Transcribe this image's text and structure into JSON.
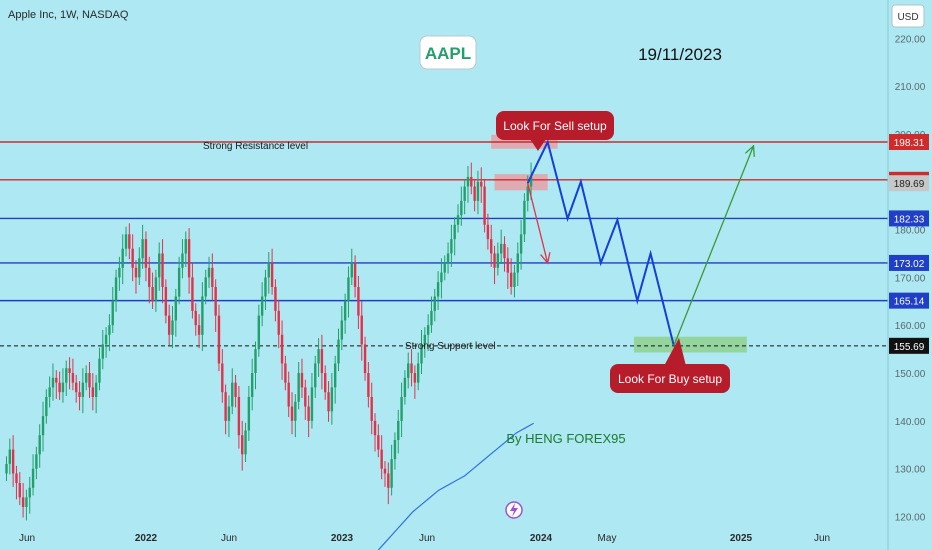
{
  "header": {
    "symbol_title": "Apple Inc, 1W, NASDAQ",
    "currency": "USD"
  },
  "badges": {
    "ticker": "AAPL",
    "date": "19/11/2023"
  },
  "watermark_text": "By HENG FOREX95",
  "colors": {
    "background": "#aee8f2",
    "bull": "#22a06b",
    "bear": "#e0334a",
    "resistance_line": "#d12a2a",
    "support_line": "#1f3fc7",
    "projection": "#1440d8",
    "buy_arrow": "#3a9a3a",
    "callout": "#b71c2b",
    "ma_line": "#2f73e6"
  },
  "chart_data": {
    "type": "candlestick",
    "title": "Apple Inc, 1W, NASDAQ",
    "ylim": [
      113,
      228
    ],
    "y_ticks": [
      120,
      130,
      140,
      150,
      160,
      170,
      180,
      190,
      200,
      210,
      220
    ],
    "x_ticks": [
      "Jun",
      "2022",
      "Jun",
      "2023",
      "Jun",
      "2024",
      "May",
      "2025",
      "Jun"
    ],
    "grid": false,
    "price_levels": [
      {
        "value": 198.31,
        "label": "198.31",
        "color": "#d12a2a",
        "style": "solid"
      },
      {
        "value": 190.4,
        "label": "190.40",
        "color": "#d12a2a",
        "style": "solid"
      },
      {
        "value": 189.69,
        "label": "189.69",
        "color": "#bdbdbd",
        "style": "none"
      },
      {
        "value": 182.33,
        "label": "182.33",
        "color": "#1f3fc7",
        "style": "solid"
      },
      {
        "value": 173.02,
        "label": "173.02",
        "color": "#1f3fc7",
        "style": "solid"
      },
      {
        "value": 165.14,
        "label": "165.14",
        "color": "#1f3fc7",
        "style": "solid"
      },
      {
        "value": 155.69,
        "label": "155.69",
        "color": "#111111",
        "style": "dashed"
      }
    ],
    "annotations": {
      "resistance": "Strong Resistance level",
      "support": "Strong Support level",
      "sell_callout": "Look For Sell setup",
      "buy_callout": "Look For Buy setup"
    },
    "candles_close": [
      131,
      134,
      129,
      127,
      124,
      122,
      124,
      126,
      130,
      133,
      137,
      141,
      145,
      147,
      149,
      148,
      146,
      148,
      151,
      150,
      148,
      146,
      145,
      148,
      150,
      147,
      145,
      148,
      153,
      156,
      158,
      160,
      165,
      170,
      172,
      176,
      179,
      176,
      172,
      170,
      174,
      178,
      172,
      168,
      165,
      170,
      175,
      168,
      162,
      158,
      161,
      166,
      172,
      175,
      178,
      170,
      163,
      160,
      158,
      166,
      170,
      172,
      168,
      162,
      152,
      146,
      140,
      143,
      148,
      145,
      137,
      133,
      138,
      145,
      150,
      155,
      162,
      166,
      170,
      173,
      168,
      163,
      158,
      152,
      148,
      143,
      140,
      144,
      150,
      147,
      143,
      140,
      147,
      152,
      155,
      150,
      146,
      142,
      147,
      152,
      157,
      161,
      165,
      170,
      173,
      168,
      162,
      156,
      150,
      145,
      140,
      137,
      134,
      130,
      129,
      126,
      132,
      136,
      140,
      145,
      149,
      152,
      150,
      148,
      152,
      156,
      158,
      160,
      163,
      166,
      169,
      171,
      173,
      175,
      178,
      181,
      183,
      186,
      189,
      191,
      189,
      186,
      190,
      189,
      181,
      178,
      175,
      172,
      175,
      177,
      174,
      171,
      168,
      171,
      175,
      179,
      186,
      189,
      191
    ],
    "moving_average": {
      "first_week": 112,
      "values": [
        113,
        115,
        117,
        119,
        121,
        122.5,
        124,
        125.5,
        126.5,
        127.5,
        128.5,
        130,
        131.5,
        133,
        134.5,
        136,
        137.5,
        138.5,
        139.5
      ]
    },
    "projection_path": [
      {
        "week": 157,
        "price": 189.7
      },
      {
        "week": 163,
        "price": 198.3
      },
      {
        "week": 169,
        "price": 182.3
      },
      {
        "week": 173,
        "price": 190
      },
      {
        "week": 179,
        "price": 173
      },
      {
        "week": 184,
        "price": 182
      },
      {
        "week": 190,
        "price": 165.1
      },
      {
        "week": 194,
        "price": 175
      },
      {
        "week": 201,
        "price": 155.7
      }
    ],
    "sell_arrow": {
      "from": {
        "week": 157,
        "price": 189.7
      },
      "to": {
        "week": 163,
        "price": 173
      }
    },
    "buy_arrow": {
      "from": {
        "week": 201,
        "price": 155.7
      },
      "to": {
        "week": 225,
        "price": 197.5
      }
    },
    "zones": [
      {
        "from_week": 146,
        "to_week": 166,
        "low": 196.9,
        "high": 199.8,
        "color": "#e6a0a8"
      },
      {
        "from_week": 147,
        "to_week": 163,
        "low": 188.2,
        "high": 191.6,
        "color": "#e6a0a8"
      },
      {
        "from_week": 189,
        "to_week": 223,
        "low": 154.3,
        "high": 157.6,
        "color": "#8fd18f"
      }
    ]
  }
}
